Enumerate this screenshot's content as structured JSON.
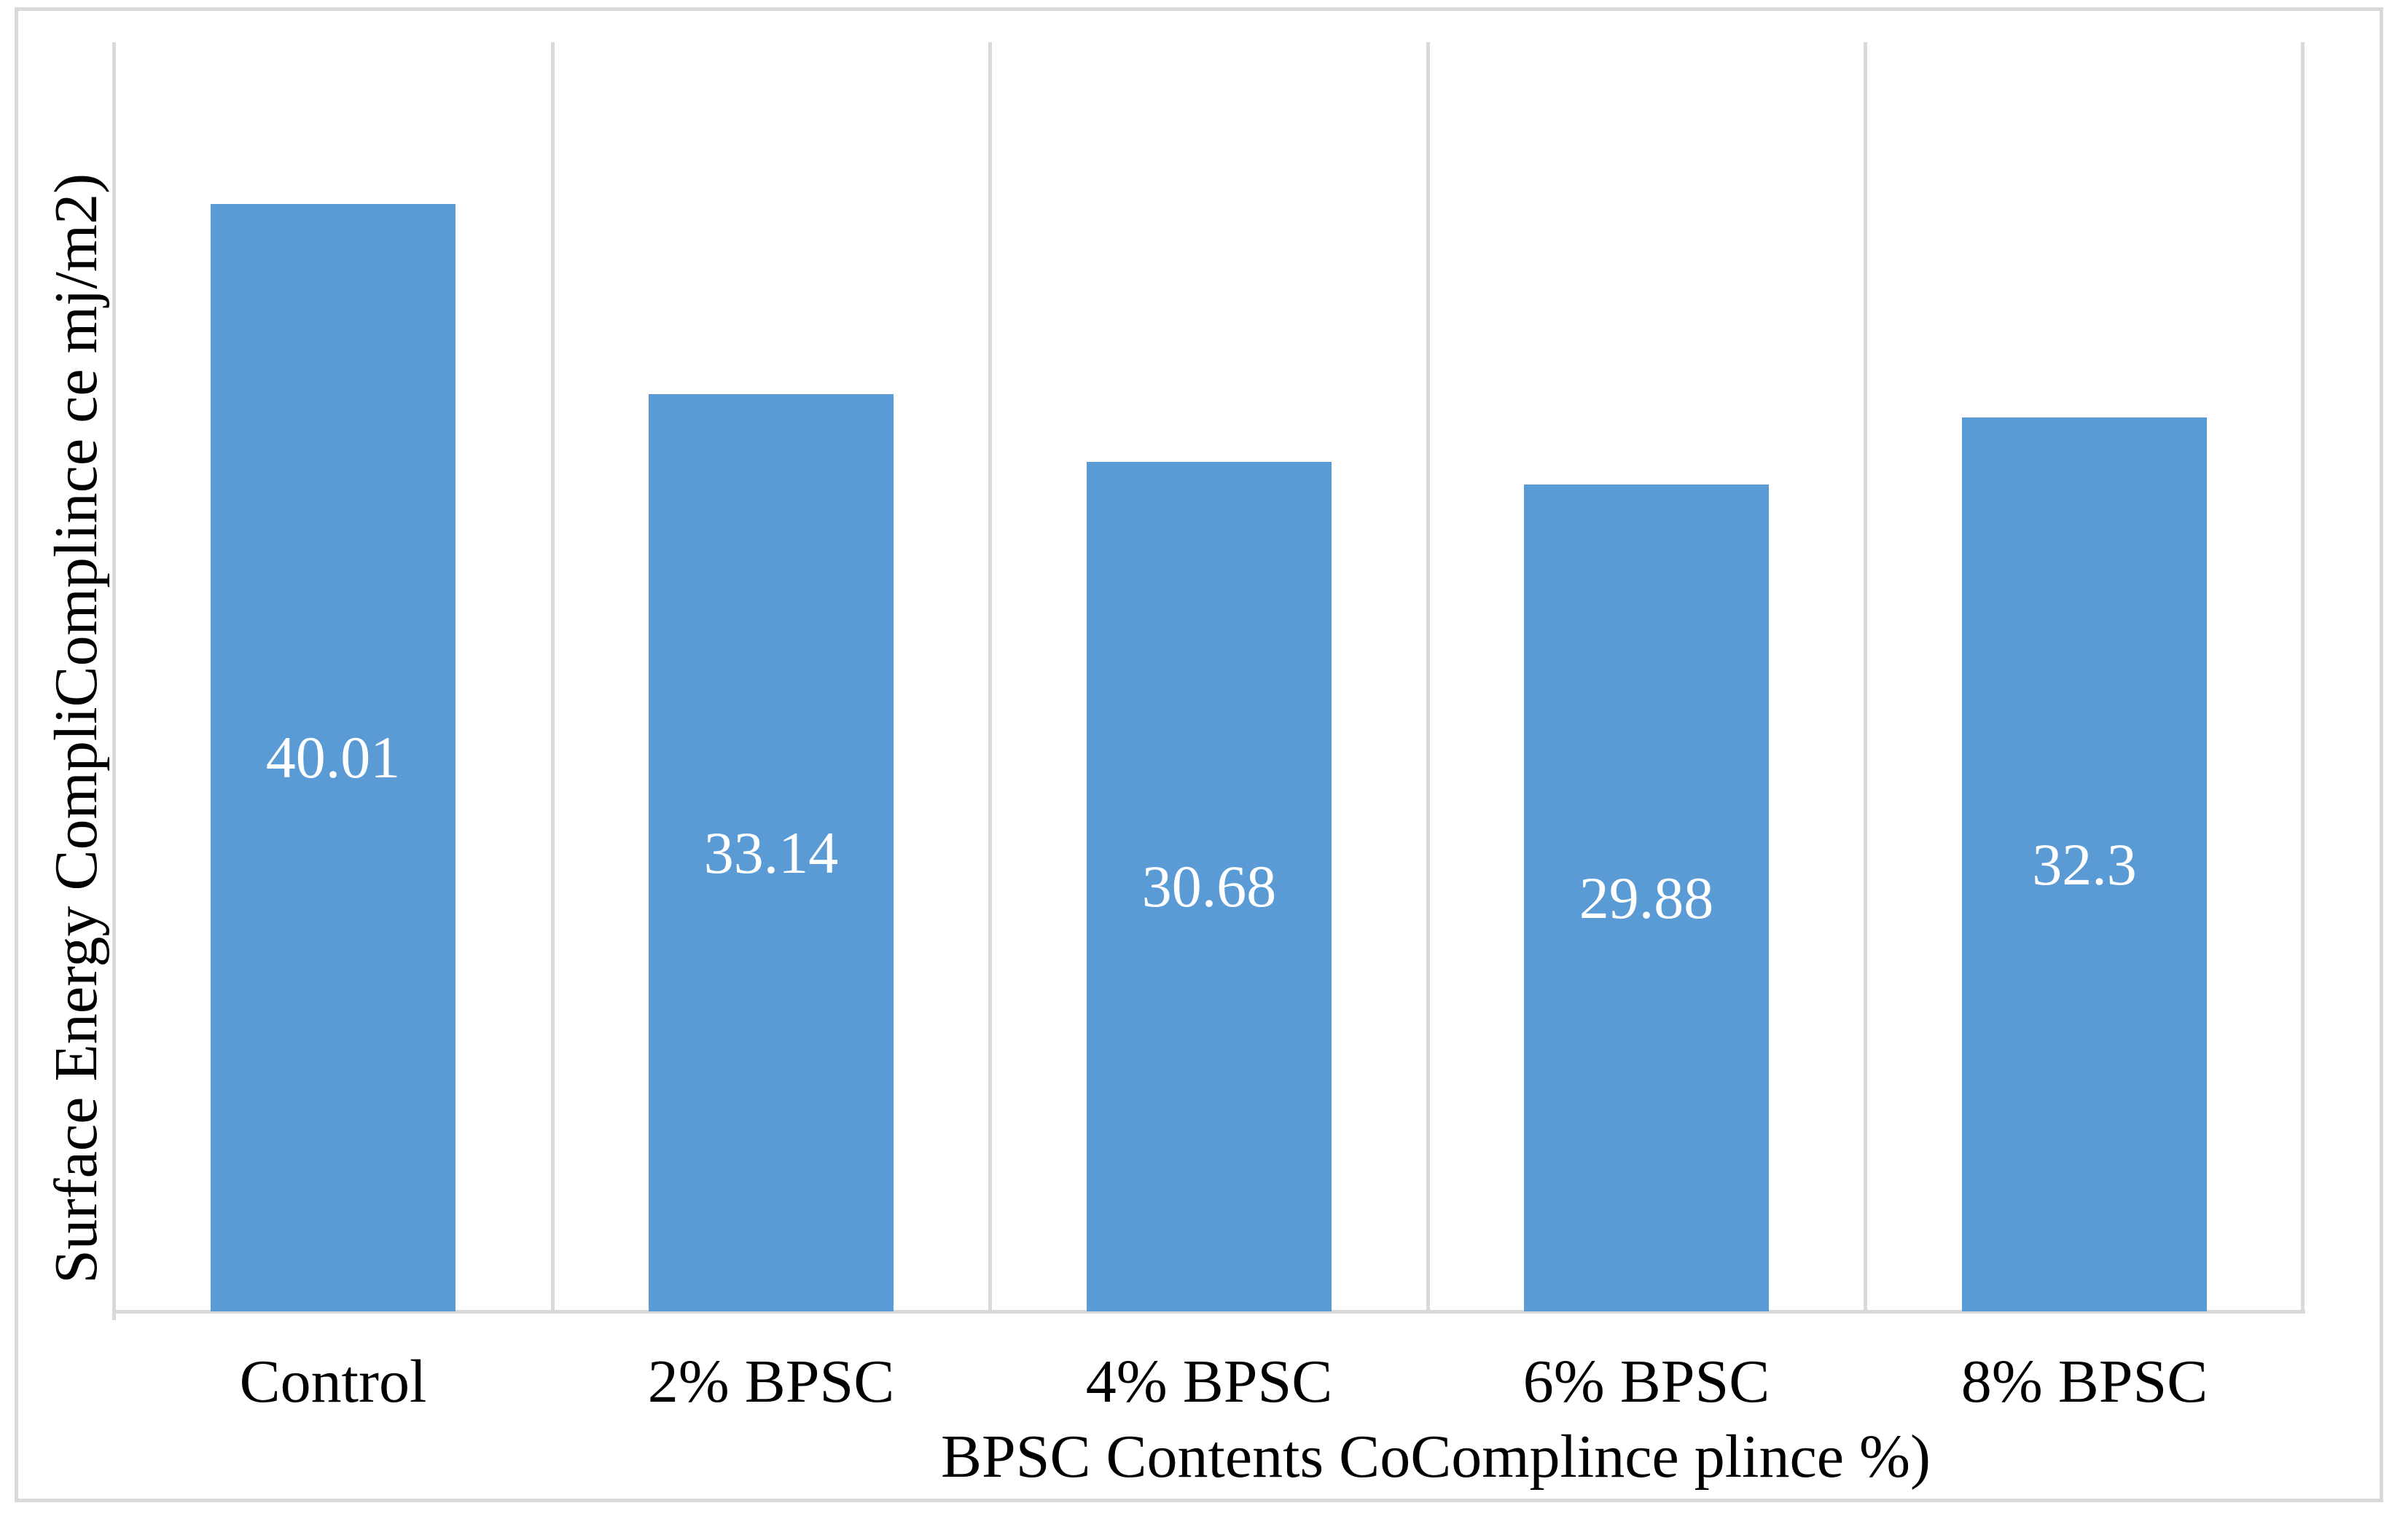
{
  "chart_data": {
    "type": "bar",
    "categories": [
      "Control",
      "2% BPSC",
      "4% BPSC",
      "6% BPSC",
      "8% BPSC"
    ],
    "values": [
      40.01,
      33.14,
      30.68,
      29.88,
      32.3
    ],
    "value_labels": [
      "40.01",
      "33.14",
      "30.68",
      "29.88",
      "32.3"
    ],
    "title": "",
    "xlabel": "BPSC Contents CoComplince plince %)",
    "ylabel": "Surface Energy CompliComplince ce mj/m2)",
    "ylim": [
      0,
      45.8
    ],
    "y_tick_labels": "none",
    "grid": "vertical category separators only",
    "legend": "none",
    "bar_color": "#5b9bd5",
    "bar_label_color": "#ffffff",
    "axis_line_color": "#d9d9d9",
    "frame_border_color": "#d9d9d9",
    "background_color": "#ffffff"
  }
}
